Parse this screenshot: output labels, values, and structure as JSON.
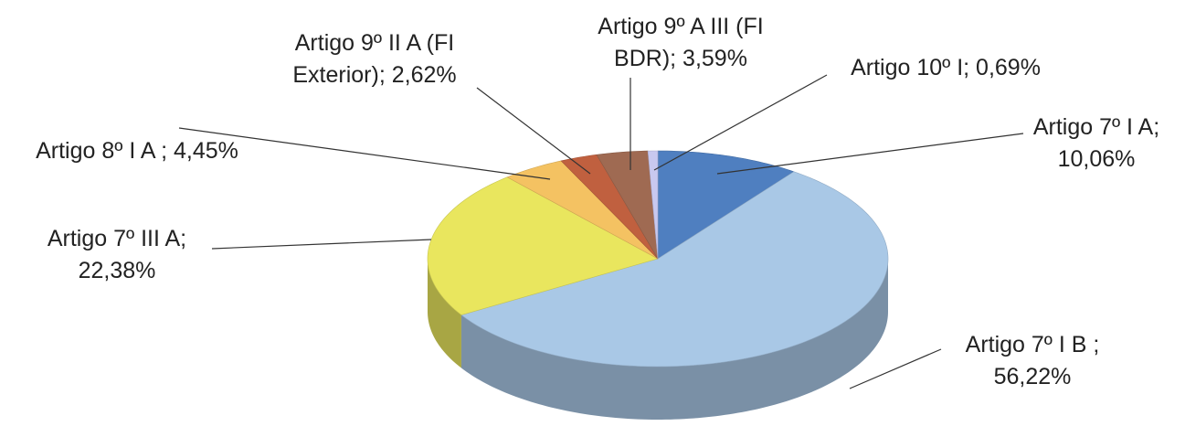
{
  "chart_data": {
    "type": "pie3d",
    "values": [
      10.06,
      56.22,
      22.38,
      4.45,
      2.62,
      3.59,
      0.69
    ],
    "value_labels": [
      [
        "Artigo 7º I A;",
        "10,06%"
      ],
      [
        "Artigo 7º I B ;",
        "56,22%"
      ],
      [
        "Artigo 7º III A;",
        "22,38%"
      ],
      [
        "Artigo 8º I A ; 4,45%"
      ],
      [
        "Artigo 9º II A (FI",
        "Exterior); 2,62%"
      ],
      [
        "Artigo 9º A III (FI",
        "BDR); 3,59%"
      ],
      [
        "Artigo 10º I; 0,69%"
      ]
    ],
    "colors": [
      "#4f7fc0",
      "#a9c8e6",
      "#e9e65e",
      "#f4c262",
      "#c0603f",
      "#9f6a52",
      "#c8c8ef"
    ]
  }
}
